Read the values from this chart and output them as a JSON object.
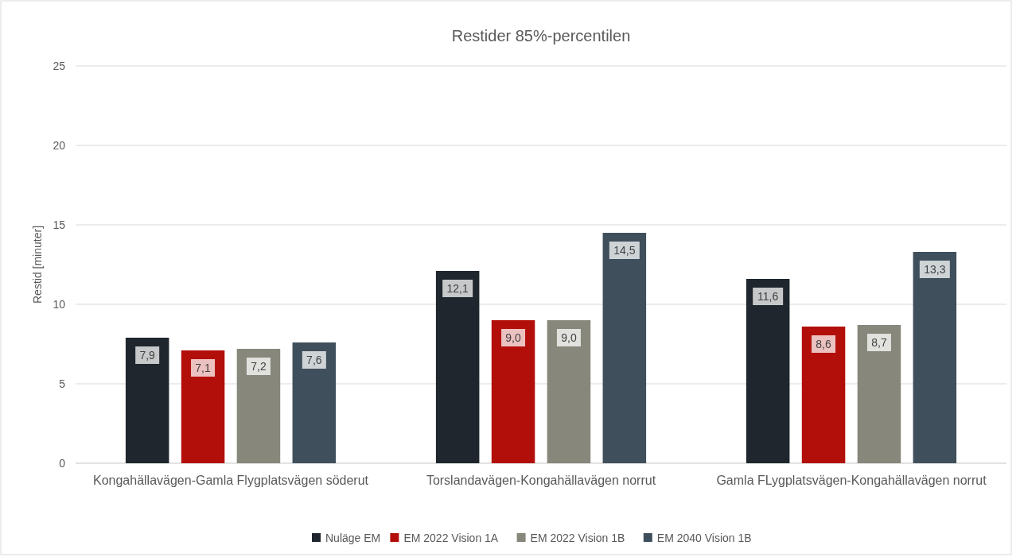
{
  "chart_data": {
    "type": "bar",
    "title": "Restider 85%-percentilen",
    "ylabel": "Restid [minuter]",
    "categories": [
      "Kongahällavägen-Gamla Flygplatsvägen söderut",
      "Torslandavägen-Kongahällavägen norrut",
      "Gamla FLygplatsvägen-Kongahällavägen norrut"
    ],
    "series": [
      {
        "name": "Nuläge EM",
        "color": "#1f262d",
        "values": [
          7.9,
          12.1,
          11.6
        ],
        "value_labels": [
          "7,9",
          "12,1",
          "11,6"
        ]
      },
      {
        "name": "EM 2022 Vision 1A",
        "color": "#b30f0a",
        "values": [
          7.1,
          9.0,
          8.6
        ],
        "value_labels": [
          "7,1",
          "9,0",
          "8,6"
        ]
      },
      {
        "name": "EM 2022 Vision 1B",
        "color": "#87877b",
        "values": [
          7.2,
          9.0,
          8.7
        ],
        "value_labels": [
          "7,2",
          "9,0",
          "8,7"
        ]
      },
      {
        "name": "EM 2040 Vision 1B",
        "color": "#3f4f5c",
        "values": [
          7.6,
          14.5,
          13.3
        ],
        "value_labels": [
          "7,6",
          "14,5",
          "13,3"
        ]
      }
    ],
    "ylim": [
      0,
      25
    ],
    "yticks": [
      0,
      5,
      10,
      15,
      20,
      25
    ],
    "grid": "y",
    "legend": "bottom"
  }
}
